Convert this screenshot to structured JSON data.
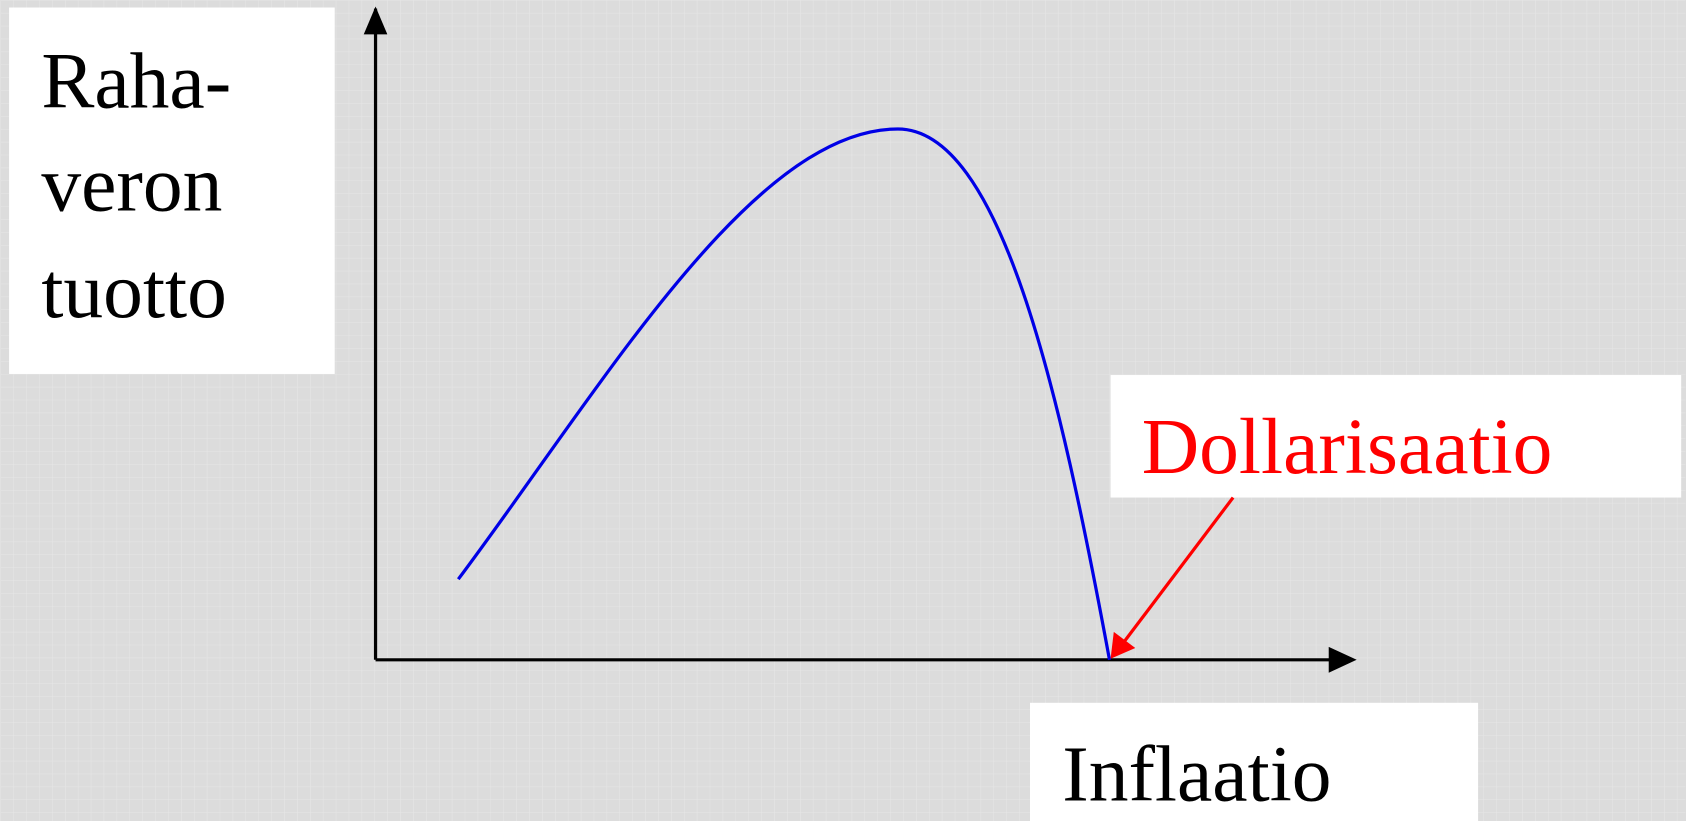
{
  "y_axis_label": {
    "lines": [
      "Raha-",
      "veron",
      "tuotto"
    ]
  },
  "x_axis_label": "Inflaatio",
  "annotation": "Dollarisaatio"
}
